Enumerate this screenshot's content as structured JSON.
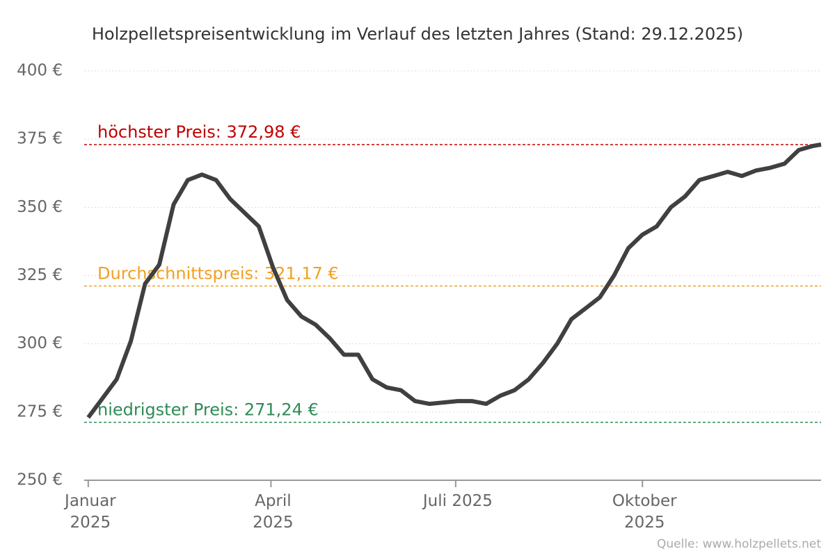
{
  "chart_data": {
    "type": "line",
    "title": "Holzpelletspreisentwicklung im Verlauf des letzten Jahres (Stand: 29.12.2025)",
    "source": "Quelle: www.holzpellets.net",
    "x": [
      0,
      7,
      14,
      21,
      28,
      35,
      42,
      49,
      56,
      63,
      70,
      77,
      84,
      91,
      98,
      105,
      112,
      119,
      126,
      133,
      140,
      147,
      154,
      161,
      168,
      175,
      182,
      189,
      196,
      203,
      210,
      217,
      224,
      231,
      238,
      245,
      252,
      259,
      266,
      273,
      280,
      287,
      294,
      301,
      308,
      315,
      322,
      329,
      336,
      343,
      350,
      357,
      361
    ],
    "series": [
      {
        "color": "#404040",
        "values": [
          273,
          280,
          287,
          301,
          322,
          329,
          351,
          360,
          362,
          360,
          353,
          348,
          343,
          328,
          316,
          310,
          307,
          302,
          296,
          296,
          287,
          284,
          283,
          279,
          278,
          278.5,
          279,
          279,
          278,
          281,
          283,
          287,
          293,
          300,
          309,
          313,
          317,
          325,
          335,
          340,
          343,
          350,
          354,
          360,
          361.5,
          363,
          361.5,
          363.5,
          364.5,
          366,
          371,
          372.5,
          373
        ]
      }
    ],
    "xlim": [
      -2,
      361
    ],
    "xticks": [
      {
        "value": 0,
        "label": "Januar 2025"
      },
      {
        "value": 90,
        "label": "April 2025"
      },
      {
        "value": 181,
        "label": "Juli 2025"
      },
      {
        "value": 273,
        "label": "Oktober 2025"
      }
    ],
    "ylim": [
      250,
      400
    ],
    "yticks": [
      {
        "value": 250,
        "label": "250 €"
      },
      {
        "value": 275,
        "label": "275 €"
      },
      {
        "value": 300,
        "label": "300 €"
      },
      {
        "value": 325,
        "label": "325 €"
      },
      {
        "value": 350,
        "label": "350 €"
      },
      {
        "value": 375,
        "label": "375 €"
      },
      {
        "value": 400,
        "label": "400 €"
      }
    ],
    "grid": true,
    "reference_lines": [
      {
        "label": "höchster Preis: 372,98 €",
        "value": 372.98,
        "color": "#c00000"
      },
      {
        "label": "Durchschnittspreis: 321,17 €",
        "value": 321.17,
        "color": "#f0a020"
      },
      {
        "label": "niedrigster Preis: 271,24 €",
        "value": 271.24,
        "color": "#2e8b57"
      }
    ]
  }
}
